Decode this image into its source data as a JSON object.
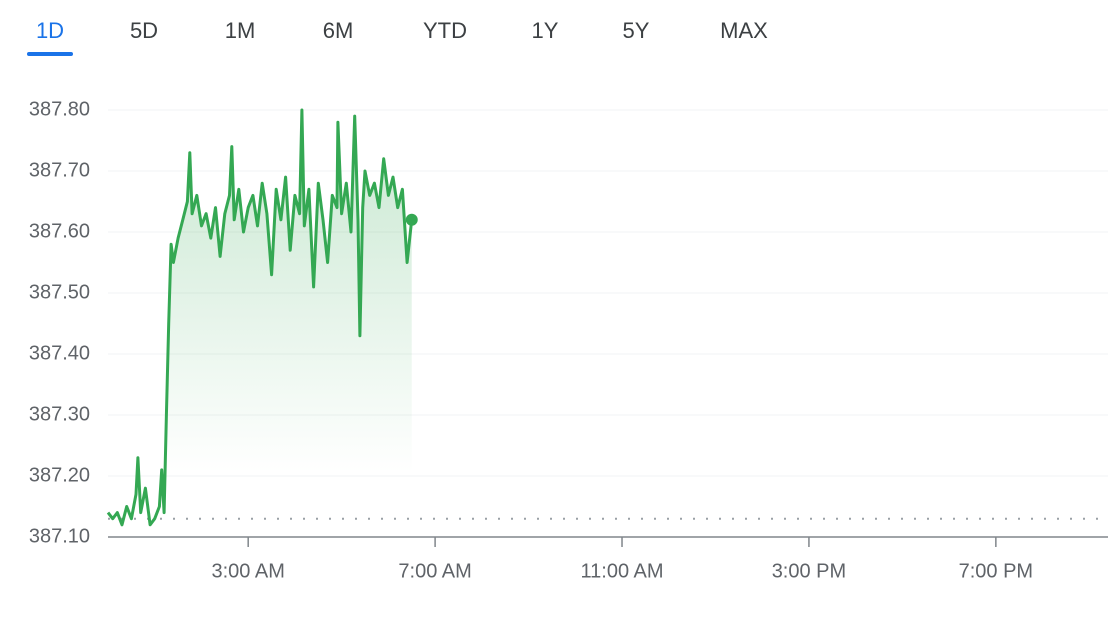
{
  "tabs": [
    "1D",
    "5D",
    "1M",
    "6M",
    "YTD",
    "1Y",
    "5Y",
    "MAX"
  ],
  "selected_tab": 0,
  "chart_data": {
    "type": "line",
    "color": "#34a853",
    "reference_line": 387.13,
    "x": [
      0,
      0.1,
      0.2,
      0.3,
      0.4,
      0.5,
      0.6,
      0.64,
      0.7,
      0.8,
      0.9,
      1.0,
      1.1,
      1.15,
      1.2,
      1.25,
      1.3,
      1.35,
      1.4,
      1.5,
      1.6,
      1.7,
      1.75,
      1.8,
      1.9,
      2.0,
      2.1,
      2.2,
      2.3,
      2.4,
      2.5,
      2.6,
      2.65,
      2.7,
      2.8,
      2.9,
      3.0,
      3.1,
      3.2,
      3.3,
      3.4,
      3.5,
      3.6,
      3.7,
      3.8,
      3.9,
      4.0,
      4.1,
      4.15,
      4.2,
      4.3,
      4.4,
      4.5,
      4.6,
      4.7,
      4.8,
      4.9,
      4.92,
      5.0,
      5.1,
      5.2,
      5.28,
      5.35,
      5.39,
      5.45,
      5.5,
      5.6,
      5.7,
      5.8,
      5.9,
      6.0,
      6.1,
      6.2,
      6.3,
      6.4,
      6.5
    ],
    "values": [
      387.14,
      387.13,
      387.14,
      387.12,
      387.15,
      387.13,
      387.17,
      387.23,
      387.14,
      387.18,
      387.12,
      387.13,
      387.15,
      387.21,
      387.14,
      387.3,
      387.45,
      387.58,
      387.55,
      387.59,
      387.62,
      387.65,
      387.73,
      387.63,
      387.66,
      387.61,
      387.63,
      387.59,
      387.64,
      387.56,
      387.63,
      387.66,
      387.74,
      387.62,
      387.67,
      387.6,
      387.64,
      387.66,
      387.61,
      387.68,
      387.63,
      387.53,
      387.67,
      387.62,
      387.69,
      387.57,
      387.66,
      387.63,
      387.8,
      387.61,
      387.67,
      387.51,
      387.68,
      387.62,
      387.55,
      387.66,
      387.64,
      387.78,
      387.63,
      387.68,
      387.6,
      387.79,
      387.62,
      387.43,
      387.64,
      387.7,
      387.66,
      387.68,
      387.64,
      387.72,
      387.66,
      387.69,
      387.64,
      387.67,
      387.55,
      387.62
    ],
    "xlim": [
      0,
      21.4
    ],
    "xticks": [
      {
        "value": 3,
        "label": "3:00 AM"
      },
      {
        "value": 7,
        "label": "7:00 AM"
      },
      {
        "value": 11,
        "label": "11:00 AM"
      },
      {
        "value": 15,
        "label": "3:00 PM"
      },
      {
        "value": 19,
        "label": "7:00 PM"
      }
    ],
    "ylim": [
      387.1,
      387.8
    ],
    "yticks": [
      {
        "value": 387.1,
        "label": "387.10"
      },
      {
        "value": 387.2,
        "label": "387.20"
      },
      {
        "value": 387.3,
        "label": "387.30"
      },
      {
        "value": 387.4,
        "label": "387.40"
      },
      {
        "value": 387.5,
        "label": "387.50"
      },
      {
        "value": 387.6,
        "label": "387.60"
      },
      {
        "value": 387.7,
        "label": "387.70"
      },
      {
        "value": 387.8,
        "label": "387.80"
      }
    ],
    "grid": true
  }
}
